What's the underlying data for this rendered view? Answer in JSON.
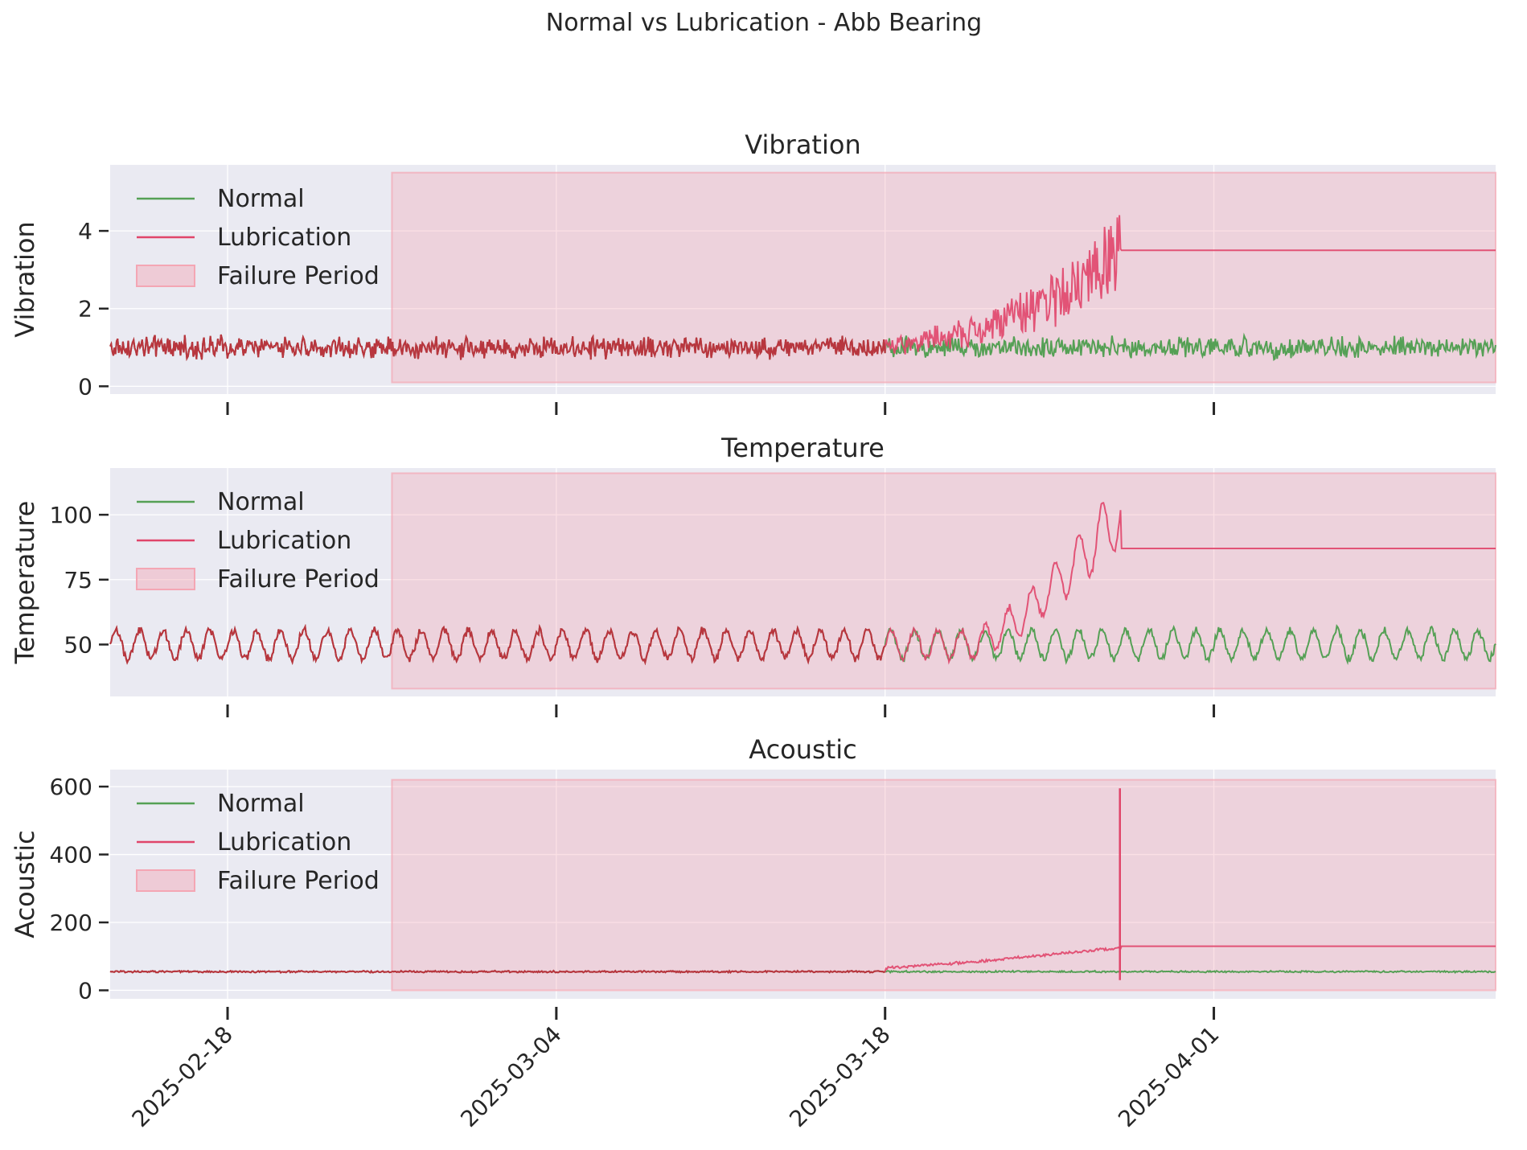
{
  "figure_title": "Normal vs Lubrication - Abb Bearing",
  "colors": {
    "normal": "#55a055",
    "lubrication": "#e0456a",
    "overlap": "#b8363e",
    "failure_fill": "#f4a6b4",
    "axes_bg": "#eaeaf2"
  },
  "chart_data": [
    {
      "type": "line",
      "title": "Vibration",
      "ylabel": "Vibration",
      "xlabel": "",
      "xlim": [
        "2025-02-13",
        "2025-04-13"
      ],
      "ylim": [
        -0.2,
        5.7
      ],
      "yticks": [
        0,
        2,
        4
      ],
      "xticks": [
        "2025-02-18",
        "2025-03-04",
        "2025-03-18",
        "2025-04-01"
      ],
      "show_xtick_labels": false,
      "grid": true,
      "legend_position": "upper-left",
      "legend": [
        "Normal",
        "Lubrication",
        "Failure Period"
      ],
      "failure_period": {
        "start": "2025-02-25",
        "end": "2025-04-13",
        "ymin": 0.1,
        "ymax": 5.5
      },
      "series": [
        {
          "name": "Normal",
          "x": [
            "2025-02-13",
            "2025-03-20",
            "2025-04-13"
          ],
          "y": [
            1.0,
            1.0,
            1.0
          ],
          "noise": 0.22
        },
        {
          "name": "Lubrication",
          "x": [
            "2025-02-13",
            "2025-03-18",
            "2025-03-22",
            "2025-03-25",
            "2025-03-27",
            "2025-03-28",
            "2025-04-13"
          ],
          "y": [
            1.0,
            1.0,
            1.4,
            2.2,
            2.9,
            3.5,
            3.5
          ],
          "noise": 0.22,
          "noise_growth": 0.35,
          "flat_from": "2025-03-28"
        }
      ]
    },
    {
      "type": "line",
      "title": "Temperature",
      "ylabel": "Temperature",
      "xlabel": "",
      "xlim": [
        "2025-02-13",
        "2025-04-13"
      ],
      "ylim": [
        30,
        118
      ],
      "yticks": [
        50,
        75,
        100
      ],
      "xticks": [
        "2025-02-18",
        "2025-03-04",
        "2025-03-18",
        "2025-04-01"
      ],
      "show_xtick_labels": false,
      "grid": true,
      "legend_position": "upper-left",
      "legend": [
        "Normal",
        "Lubrication",
        "Failure Period"
      ],
      "failure_period": {
        "start": "2025-02-25",
        "end": "2025-04-13",
        "ymin": 33,
        "ymax": 116
      },
      "series": [
        {
          "name": "Normal",
          "x": [
            "2025-02-13",
            "2025-04-13"
          ],
          "y": [
            50,
            50
          ],
          "noise": 1.2,
          "daily_amplitude": 5.5
        },
        {
          "name": "Lubrication",
          "x": [
            "2025-02-13",
            "2025-03-22",
            "2025-03-24",
            "2025-03-26",
            "2025-03-28",
            "2025-04-13"
          ],
          "y": [
            50,
            50,
            62,
            80,
            100,
            87
          ],
          "noise": 1.2,
          "daily_amplitude": 5.5,
          "flat_from": "2025-03-28"
        }
      ]
    },
    {
      "type": "line",
      "title": "Acoustic",
      "ylabel": "Acoustic",
      "xlabel": "",
      "xlim": [
        "2025-02-13",
        "2025-04-13"
      ],
      "ylim": [
        -25,
        650
      ],
      "yticks": [
        0,
        200,
        400,
        600
      ],
      "xticks": [
        "2025-02-18",
        "2025-03-04",
        "2025-03-18",
        "2025-04-01"
      ],
      "show_xtick_labels": true,
      "grid": true,
      "legend_position": "upper-left",
      "legend": [
        "Normal",
        "Lubrication",
        "Failure Period"
      ],
      "failure_period": {
        "start": "2025-02-25",
        "end": "2025-04-13",
        "ymin": 0,
        "ymax": 620
      },
      "series": [
        {
          "name": "Normal",
          "x": [
            "2025-02-13",
            "2025-04-13"
          ],
          "y": [
            55,
            55
          ],
          "noise": 2
        },
        {
          "name": "Lubrication",
          "x": [
            "2025-02-13",
            "2025-03-16",
            "2025-03-22",
            "2025-03-28",
            "2025-04-13"
          ],
          "y": [
            55,
            55,
            85,
            125,
            130
          ],
          "noise": 3,
          "spike": {
            "x": "2025-03-28",
            "max": 595,
            "min": 30
          },
          "flat_from": "2025-03-28"
        }
      ]
    }
  ]
}
